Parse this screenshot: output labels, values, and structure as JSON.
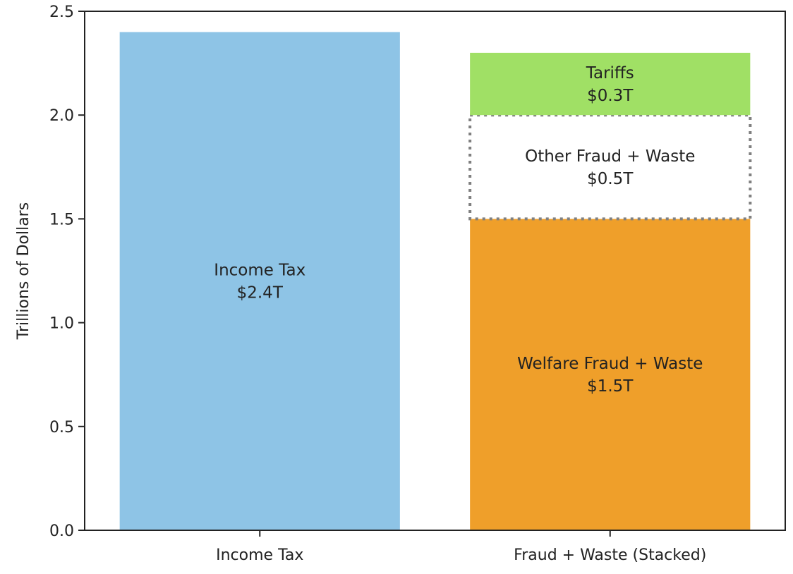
{
  "chart_data": {
    "type": "bar",
    "title": "",
    "xlabel": "",
    "ylabel": "Trillions of Dollars",
    "ylim": [
      0,
      2.5
    ],
    "yticks": [
      0.0,
      0.5,
      1.0,
      1.5,
      2.0,
      2.5
    ],
    "ytick_labels": [
      "0.0",
      "0.5",
      "1.0",
      "1.5",
      "2.0",
      "2.5"
    ],
    "categories": [
      "Income Tax",
      "Fraud + Waste (Stacked)"
    ],
    "grid": false,
    "legend": false,
    "bars": [
      {
        "category": "Income Tax",
        "segments": [
          {
            "bottom": 0,
            "value": 2.4,
            "color": "#8EC4E6",
            "style": "solid",
            "label": [
              "Income Tax",
              "$2.4T"
            ]
          }
        ]
      },
      {
        "category": "Fraud + Waste (Stacked)",
        "segments": [
          {
            "bottom": 0,
            "value": 1.5,
            "color": "#EF9F2A",
            "style": "solid",
            "label": [
              "Welfare Fraud + Waste",
              "$1.5T"
            ]
          },
          {
            "bottom": 1.5,
            "value": 0.5,
            "color": "#FFFFFF",
            "style": "dotted-outline",
            "label": [
              "Other Fraud + Waste",
              "$0.5T"
            ]
          },
          {
            "bottom": 2.0,
            "value": 0.3,
            "color": "#A0E065",
            "style": "solid",
            "label": [
              "Tariffs",
              "$0.3T"
            ]
          }
        ]
      }
    ]
  }
}
